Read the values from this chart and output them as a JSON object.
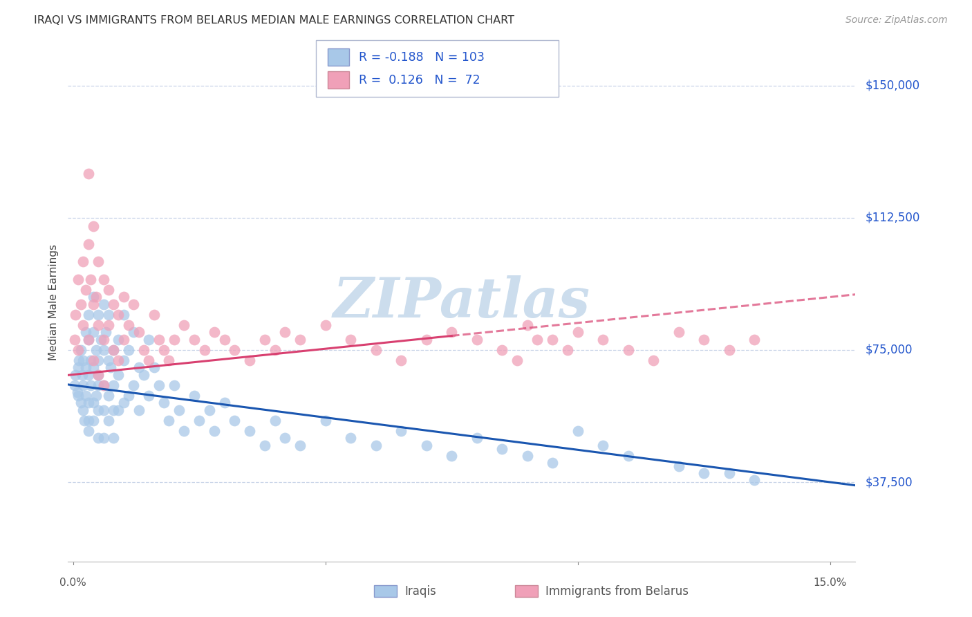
{
  "title": "IRAQI VS IMMIGRANTS FROM BELARUS MEDIAN MALE EARNINGS CORRELATION CHART",
  "source": "Source: ZipAtlas.com",
  "ylabel": "Median Male Earnings",
  "ytick_labels": [
    "$37,500",
    "$75,000",
    "$112,500",
    "$150,000"
  ],
  "ytick_values": [
    37500,
    75000,
    112500,
    150000
  ],
  "ymin": 15000,
  "ymax": 162000,
  "xmin": -0.001,
  "xmax": 0.155,
  "legend_label1": "Iraqis",
  "legend_label2": "Immigrants from Belarus",
  "r1": -0.188,
  "n1": 103,
  "r2": 0.126,
  "n2": 72,
  "color_blue": "#a8c8e8",
  "color_pink": "#f0a0b8",
  "color_blue_line": "#1a56b0",
  "color_pink_line": "#d84070",
  "color_text_blue": "#2255cc",
  "watermark": "ZIPatlas",
  "background": "#ffffff",
  "watermark_color": "#ccdded",
  "iraqis_x": [
    0.0003,
    0.0005,
    0.0008,
    0.001,
    0.001,
    0.0012,
    0.0015,
    0.0015,
    0.0018,
    0.002,
    0.002,
    0.002,
    0.0022,
    0.0025,
    0.0025,
    0.0025,
    0.003,
    0.003,
    0.003,
    0.003,
    0.003,
    0.003,
    0.0035,
    0.0035,
    0.004,
    0.004,
    0.004,
    0.004,
    0.004,
    0.0045,
    0.0045,
    0.005,
    0.005,
    0.005,
    0.005,
    0.005,
    0.005,
    0.0055,
    0.006,
    0.006,
    0.006,
    0.006,
    0.006,
    0.0065,
    0.007,
    0.007,
    0.007,
    0.007,
    0.0075,
    0.008,
    0.008,
    0.008,
    0.008,
    0.009,
    0.009,
    0.009,
    0.01,
    0.01,
    0.01,
    0.011,
    0.011,
    0.012,
    0.012,
    0.013,
    0.013,
    0.014,
    0.015,
    0.015,
    0.016,
    0.017,
    0.018,
    0.019,
    0.02,
    0.021,
    0.022,
    0.024,
    0.025,
    0.027,
    0.028,
    0.03,
    0.032,
    0.035,
    0.038,
    0.04,
    0.042,
    0.045,
    0.05,
    0.055,
    0.06,
    0.065,
    0.07,
    0.075,
    0.08,
    0.085,
    0.09,
    0.095,
    0.1,
    0.105,
    0.11,
    0.12,
    0.125,
    0.13,
    0.135
  ],
  "iraqis_y": [
    65000,
    68000,
    63000,
    70000,
    62000,
    72000,
    75000,
    60000,
    68000,
    65000,
    58000,
    72000,
    55000,
    80000,
    70000,
    62000,
    78000,
    68000,
    60000,
    52000,
    85000,
    55000,
    72000,
    65000,
    90000,
    80000,
    70000,
    60000,
    55000,
    75000,
    62000,
    85000,
    72000,
    65000,
    58000,
    50000,
    68000,
    78000,
    88000,
    75000,
    65000,
    58000,
    50000,
    80000,
    85000,
    72000,
    62000,
    55000,
    70000,
    75000,
    65000,
    58000,
    50000,
    78000,
    68000,
    58000,
    85000,
    72000,
    60000,
    75000,
    62000,
    80000,
    65000,
    70000,
    58000,
    68000,
    78000,
    62000,
    70000,
    65000,
    60000,
    55000,
    65000,
    58000,
    52000,
    62000,
    55000,
    58000,
    52000,
    60000,
    55000,
    52000,
    48000,
    55000,
    50000,
    48000,
    55000,
    50000,
    48000,
    52000,
    48000,
    45000,
    50000,
    47000,
    45000,
    43000,
    52000,
    48000,
    45000,
    42000,
    40000,
    40000,
    38000
  ],
  "belarus_x": [
    0.0003,
    0.0005,
    0.001,
    0.001,
    0.0015,
    0.002,
    0.002,
    0.0025,
    0.003,
    0.003,
    0.003,
    0.0035,
    0.004,
    0.004,
    0.004,
    0.0045,
    0.005,
    0.005,
    0.005,
    0.006,
    0.006,
    0.006,
    0.007,
    0.007,
    0.008,
    0.008,
    0.009,
    0.009,
    0.01,
    0.01,
    0.011,
    0.012,
    0.013,
    0.014,
    0.015,
    0.016,
    0.017,
    0.018,
    0.019,
    0.02,
    0.022,
    0.024,
    0.026,
    0.028,
    0.03,
    0.032,
    0.035,
    0.038,
    0.04,
    0.042,
    0.045,
    0.05,
    0.055,
    0.06,
    0.065,
    0.07,
    0.075,
    0.08,
    0.085,
    0.09,
    0.095,
    0.1,
    0.105,
    0.11,
    0.115,
    0.12,
    0.125,
    0.13,
    0.135,
    0.088,
    0.092,
    0.098
  ],
  "belarus_y": [
    78000,
    85000,
    95000,
    75000,
    88000,
    100000,
    82000,
    92000,
    125000,
    105000,
    78000,
    95000,
    110000,
    88000,
    72000,
    90000,
    100000,
    82000,
    68000,
    95000,
    78000,
    65000,
    92000,
    82000,
    88000,
    75000,
    85000,
    72000,
    90000,
    78000,
    82000,
    88000,
    80000,
    75000,
    72000,
    85000,
    78000,
    75000,
    72000,
    78000,
    82000,
    78000,
    75000,
    80000,
    78000,
    75000,
    72000,
    78000,
    75000,
    80000,
    78000,
    82000,
    78000,
    75000,
    72000,
    78000,
    80000,
    78000,
    75000,
    82000,
    78000,
    80000,
    78000,
    75000,
    72000,
    80000,
    78000,
    75000,
    78000,
    72000,
    78000,
    75000
  ]
}
